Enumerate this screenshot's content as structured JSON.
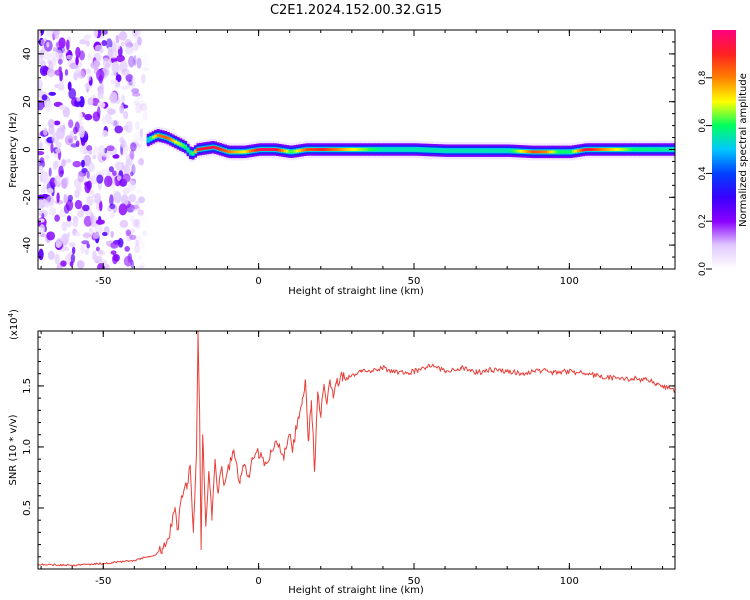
{
  "title": "C2E1.2024.152.00.32.G15",
  "chart_data": [
    {
      "type": "heatmap",
      "xlabel": "Height of straight line (km)",
      "ylabel": "Frequency (Hz)",
      "xlim": [
        -71,
        134
      ],
      "ylim": [
        -50,
        50
      ],
      "x_ticks": [
        -50,
        0,
        50,
        100
      ],
      "y_ticks": [
        -40,
        -20,
        0,
        20,
        40
      ],
      "colorbar": {
        "label": "Normalized spectral amplitude",
        "range": [
          0,
          1
        ],
        "ticks": [
          0.0,
          0.2,
          0.4,
          0.6,
          0.8
        ],
        "colormap": [
          "#ffffff",
          "#e0c8ff",
          "#8a00ff",
          "#3a00ff",
          "#0040ff",
          "#00c8ff",
          "#00ff60",
          "#ffff00",
          "#ff8000",
          "#ff2020",
          "#ff007f"
        ]
      },
      "noise_region": {
        "x": [
          -71,
          -36
        ],
        "amplitude": 0.15
      },
      "ridge": {
        "x": [
          -36,
          -33,
          -30,
          -27,
          -24,
          -22,
          -20,
          -15,
          -10,
          -5,
          0,
          5,
          10,
          15,
          20,
          30,
          40,
          50,
          60,
          70,
          80,
          88,
          92,
          96,
          100,
          105,
          110,
          120,
          134
        ],
        "frequency": [
          4,
          6,
          5,
          3,
          1,
          -2,
          0,
          1,
          -1,
          -1,
          0,
          0,
          -1,
          0,
          0,
          0,
          0,
          0,
          -0.5,
          -0.5,
          -0.5,
          -1,
          -1,
          -1,
          -1,
          0,
          0,
          0,
          0
        ],
        "peak_amplitude": [
          0.5,
          0.8,
          0.85,
          0.7,
          0.6,
          0.55,
          0.9,
          0.95,
          0.8,
          0.7,
          0.95,
          0.95,
          0.6,
          0.85,
          0.9,
          0.7,
          0.55,
          0.55,
          0.55,
          0.55,
          0.55,
          0.85,
          0.8,
          0.6,
          0.6,
          0.95,
          0.8,
          0.6,
          0.55
        ]
      }
    },
    {
      "type": "line",
      "xlabel": "Height of straight line (km)",
      "ylabel": "SNR (10 * v/v)",
      "y_multiplier": "(x10^4)",
      "y_multiplier_base": "(x10",
      "y_multiplier_exp": "4",
      "y_multiplier_close": ")",
      "xlim": [
        -71,
        134
      ],
      "ylim": [
        0,
        19500
      ],
      "x_ticks": [
        -50,
        0,
        50,
        100
      ],
      "y_ticks": [
        5000,
        10000,
        15000
      ],
      "y_tick_labels": [
        "0.5",
        "1.0",
        "1.5"
      ],
      "color": "#e8403a",
      "series": [
        {
          "x": [
            -71,
            -60,
            -50,
            -40,
            -33,
            -31,
            -29,
            -27,
            -26,
            -25,
            -23,
            -22,
            -21,
            -20,
            -19.5,
            -19,
            -18.5,
            -18,
            -17,
            -16,
            -15,
            -14,
            -13,
            -12,
            -11,
            -10,
            -8,
            -6,
            -5,
            -3,
            -2,
            0,
            2,
            4,
            6,
            8,
            10,
            11,
            12,
            13,
            14,
            15,
            16,
            17,
            18,
            19,
            20,
            21,
            22,
            23,
            24,
            25,
            27,
            30,
            33,
            36,
            40,
            45,
            50,
            55,
            60,
            65,
            70,
            75,
            80,
            85,
            90,
            95,
            100,
            105,
            110,
            115,
            120,
            125,
            128,
            131,
            134
          ],
          "y": [
            400,
            300,
            450,
            700,
            1200,
            1700,
            2500,
            4800,
            3200,
            5600,
            7000,
            8500,
            3000,
            9500,
            19500,
            13000,
            1600,
            11000,
            3500,
            8000,
            4000,
            9000,
            6200,
            8200,
            7000,
            8000,
            9500,
            7000,
            8500,
            7500,
            9000,
            9500,
            8500,
            9600,
            10200,
            9200,
            11000,
            9800,
            11500,
            12500,
            13500,
            15500,
            10500,
            13800,
            8000,
            14500,
            12500,
            15000,
            13500,
            15500,
            14000,
            15200,
            15800,
            15900,
            16300,
            16100,
            16500,
            16000,
            16200,
            16700,
            16200,
            16500,
            16100,
            16300,
            16200,
            16000,
            16300,
            16100,
            16200,
            16000,
            15800,
            15600,
            15600,
            15500,
            15200,
            14900,
            14600
          ]
        }
      ]
    }
  ]
}
